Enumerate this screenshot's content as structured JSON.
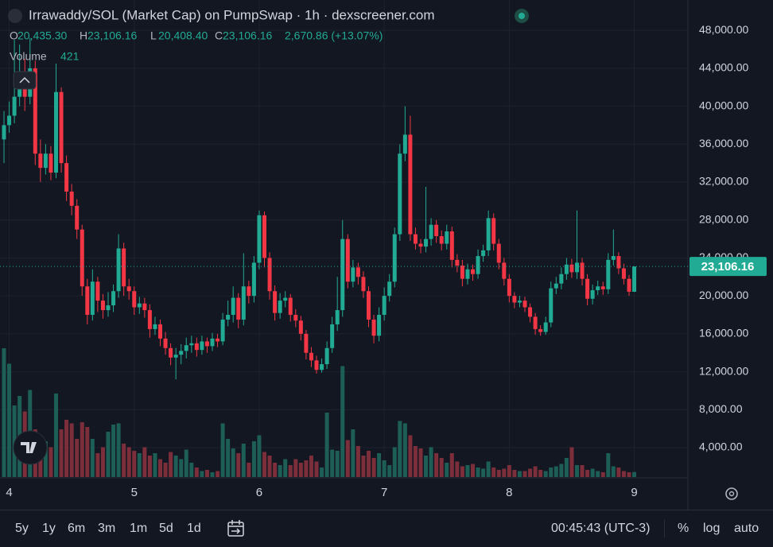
{
  "chart_data": {
    "type": "candlestick",
    "title": "Irrawaddy/SOL (Market Cap) on PumpSwap · 1h · dexscreener.com",
    "ohlc_keys": [
      "O",
      "H",
      "L",
      "C"
    ],
    "ohlc_labels": [
      "20,435.30",
      "23,106.16",
      "20,408.40",
      "23,106.16"
    ],
    "change_label": "2,670.86 (+13.07%)",
    "volume_title": "Volume",
    "last_price_label": "23,106.16",
    "up_color": "#22ab94",
    "down_color": "#f23645",
    "volume_up_color": "#1d5f56",
    "volume_down_color": "#7d2e3b",
    "grid": true,
    "categories": [
      null,
      "4",
      null,
      null,
      null,
      null,
      null,
      null,
      null,
      null,
      null,
      null,
      null,
      null,
      null,
      null,
      null,
      null,
      null,
      null,
      null,
      null,
      null,
      null,
      null,
      "5",
      null,
      null,
      null,
      null,
      null,
      null,
      null,
      null,
      null,
      null,
      null,
      null,
      null,
      null,
      null,
      null,
      null,
      null,
      null,
      null,
      null,
      null,
      null,
      "6",
      null,
      null,
      null,
      null,
      null,
      null,
      null,
      null,
      null,
      null,
      null,
      null,
      null,
      null,
      null,
      null,
      null,
      null,
      null,
      null,
      null,
      null,
      null,
      "7",
      null,
      null,
      null,
      null,
      null,
      null,
      null,
      null,
      null,
      null,
      null,
      null,
      null,
      null,
      null,
      null,
      null,
      null,
      null,
      null,
      null,
      null,
      null,
      "8",
      null,
      null,
      null,
      null,
      null,
      null,
      null,
      null,
      null,
      null,
      null,
      null,
      null,
      null,
      null,
      null,
      null,
      null,
      null,
      null,
      null,
      null,
      null,
      "9"
    ],
    "open": [
      36500,
      38000,
      39000,
      41000,
      43500,
      41000,
      44000,
      35000,
      33500,
      35000,
      33000,
      41500,
      34000,
      31000,
      29500,
      27000,
      21000,
      18000,
      21500,
      19500,
      18500,
      19000,
      20500,
      25000,
      21000,
      20500,
      18800,
      19200,
      18500,
      16500,
      17000,
      15500,
      14500,
      13500,
      13800,
      14200,
      14800,
      15000,
      14300,
      15200,
      14700,
      15500,
      15200,
      17500,
      18000,
      19800,
      17500,
      21000,
      20000,
      23500,
      28500,
      24000,
      20500,
      18200,
      19500,
      19800,
      18000,
      17400,
      16000,
      14000,
      13200,
      12200,
      12800,
      14500,
      17000,
      18500,
      26000,
      21500,
      23000,
      22000,
      20500,
      17500,
      15800,
      18000,
      20000,
      21500,
      26500,
      35000,
      37000,
      26500,
      25500,
      25200,
      26000,
      27500,
      26300,
      25500,
      26800,
      23800,
      23200,
      21800,
      22800,
      22300,
      24200,
      24800,
      28200,
      25500,
      23500,
      21800,
      20000,
      19300,
      19500,
      18800,
      17800,
      16500,
      16200,
      17200,
      20800,
      21300,
      22300,
      23300,
      22500,
      23500,
      21800,
      19700,
      20600,
      21000,
      20700,
      23800,
      24200,
      22900,
      21800,
      20435.3
    ],
    "high": [
      39500,
      40500,
      47000,
      46500,
      45000,
      47200,
      44800,
      36500,
      36000,
      35800,
      44500,
      42000,
      34800,
      31800,
      30200,
      27500,
      21800,
      22800,
      22000,
      20200,
      20400,
      21200,
      26500,
      25600,
      21800,
      21000,
      19900,
      19800,
      19100,
      17800,
      17500,
      16200,
      15000,
      14500,
      14900,
      15600,
      15800,
      15600,
      15800,
      15600,
      16100,
      16000,
      18200,
      19500,
      21000,
      20300,
      24500,
      21600,
      24200,
      29000,
      28900,
      24600,
      21100,
      20300,
      20500,
      20200,
      18600,
      17900,
      16400,
      14600,
      13700,
      13400,
      15200,
      17800,
      22000,
      28000,
      26500,
      23800,
      23500,
      22600,
      21000,
      18000,
      18800,
      20900,
      22300,
      27200,
      36000,
      40000,
      39000,
      27200,
      26000,
      31500,
      28200,
      28000,
      26900,
      27500,
      27300,
      24400,
      23800,
      23400,
      23300,
      24900,
      25400,
      29000,
      28700,
      26000,
      24000,
      22300,
      20400,
      20000,
      19900,
      19200,
      18200,
      16900,
      17800,
      21500,
      22000,
      23000,
      24000,
      23900,
      29000,
      24000,
      22300,
      21200,
      21600,
      21500,
      24500,
      27000,
      24600,
      23400,
      22200,
      23106.16
    ],
    "low": [
      34000,
      37200,
      38200,
      40000,
      39500,
      40200,
      33800,
      32000,
      32800,
      32200,
      32400,
      33000,
      30000,
      28500,
      26000,
      20000,
      17000,
      17400,
      18300,
      17600,
      17800,
      18300,
      19800,
      20000,
      19600,
      18000,
      18100,
      17700,
      15600,
      15900,
      14700,
      13800,
      12700,
      11200,
      12800,
      13400,
      14000,
      13600,
      13800,
      14000,
      14200,
      14600,
      14800,
      16800,
      17200,
      16600,
      16900,
      19200,
      19300,
      22800,
      23000,
      19600,
      17400,
      17600,
      18800,
      17300,
      16700,
      15300,
      13300,
      12500,
      11800,
      11900,
      12300,
      14000,
      16300,
      17800,
      20800,
      20900,
      21200,
      19800,
      16700,
      15000,
      15200,
      17400,
      19400,
      20900,
      25800,
      34200,
      25800,
      24900,
      24500,
      24600,
      25300,
      25600,
      24800,
      24900,
      23000,
      22500,
      21000,
      21200,
      21600,
      21800,
      23600,
      24200,
      24800,
      22800,
      21100,
      19300,
      18700,
      18800,
      18300,
      17200,
      15900,
      15800,
      15900,
      16700,
      20200,
      20700,
      21700,
      21900,
      21800,
      21100,
      19000,
      19100,
      20100,
      20100,
      20200,
      23200,
      22300,
      21200,
      20000,
      20408.4
    ],
    "close": [
      38000,
      39000,
      41000,
      43500,
      41000,
      44000,
      35000,
      33500,
      35000,
      33000,
      41500,
      34000,
      31000,
      29500,
      27000,
      21000,
      18000,
      21500,
      19500,
      18500,
      19000,
      20500,
      25000,
      21000,
      20500,
      18800,
      19200,
      18500,
      16500,
      17000,
      15500,
      14500,
      13500,
      13800,
      14200,
      14800,
      15000,
      14300,
      15200,
      14700,
      15500,
      15200,
      17500,
      18000,
      19800,
      17500,
      21000,
      20000,
      23500,
      28500,
      24000,
      20500,
      18200,
      19500,
      19800,
      18000,
      17400,
      16000,
      14000,
      13200,
      12200,
      12800,
      14500,
      17000,
      18500,
      26000,
      21500,
      23000,
      22000,
      20500,
      17500,
      15800,
      18000,
      20000,
      21500,
      26500,
      35000,
      37000,
      26500,
      25500,
      25200,
      26000,
      27500,
      26300,
      25500,
      26800,
      23800,
      23200,
      21800,
      22800,
      22300,
      24200,
      24800,
      28200,
      25500,
      23500,
      21800,
      20000,
      19300,
      19500,
      18800,
      17800,
      16500,
      16200,
      17200,
      20800,
      21300,
      22300,
      23300,
      22500,
      23500,
      21800,
      19700,
      20600,
      21000,
      20700,
      23800,
      24200,
      22900,
      21800,
      20435.3,
      23106.16
    ],
    "volume": [
      10800,
      9500,
      6000,
      6800,
      5500,
      7300,
      4000,
      3500,
      3000,
      2500,
      7000,
      4000,
      4800,
      4500,
      3200,
      4600,
      4200,
      3200,
      2000,
      2500,
      3800,
      4400,
      4500,
      2800,
      2500,
      2200,
      2000,
      2500,
      1800,
      2000,
      1500,
      1200,
      2100,
      1800,
      1500,
      2300,
      1200,
      800,
      500,
      600,
      400,
      500,
      4500,
      3200,
      2400,
      2000,
      2800,
      1200,
      3000,
      3500,
      2100,
      1800,
      1200,
      1000,
      1500,
      1000,
      1500,
      1200,
      1400,
      1800,
      1300,
      800,
      5400,
      2300,
      2200,
      9300,
      3100,
      4000,
      2600,
      1800,
      2200,
      1600,
      2000,
      1400,
      1000,
      2500,
      4700,
      4500,
      3500,
      2600,
      2400,
      1800,
      2500,
      2000,
      1600,
      1200,
      2000,
      1300,
      900,
      1000,
      1100,
      800,
      700,
      1300,
      800,
      600,
      700,
      1000,
      600,
      500,
      500,
      700,
      900,
      600,
      500,
      800,
      900,
      1100,
      1600,
      2500,
      1000,
      1000,
      600,
      700,
      500,
      400,
      2000,
      900,
      800,
      500,
      400,
      421
    ],
    "ylim": [
      900,
      51200
    ],
    "volume_ylim": [
      0,
      11000
    ],
    "yticks": [
      {
        "value": 4000,
        "label": "4,000.00"
      },
      {
        "value": 8000,
        "label": "8,000.00"
      },
      {
        "value": 12000,
        "label": "12,000.00"
      },
      {
        "value": 16000,
        "label": "16,000.00"
      },
      {
        "value": 20000,
        "label": "20,000.00"
      },
      {
        "value": 24000,
        "label": "24,000.00"
      },
      {
        "value": 28000,
        "label": "28,000.00"
      },
      {
        "value": 32000,
        "label": "32,000.00"
      },
      {
        "value": 36000,
        "label": "36,000.00"
      },
      {
        "value": 40000,
        "label": "40,000.00"
      },
      {
        "value": 44000,
        "label": "44,000.00"
      },
      {
        "value": 48000,
        "label": "48,000.00"
      }
    ],
    "ranges": [
      "5y",
      "1y",
      "6m",
      "3m",
      "1m",
      "5d",
      "1d"
    ],
    "clock": "00:45:43 (UTC-3)",
    "scale_options": [
      "%",
      "log",
      "auto"
    ]
  }
}
